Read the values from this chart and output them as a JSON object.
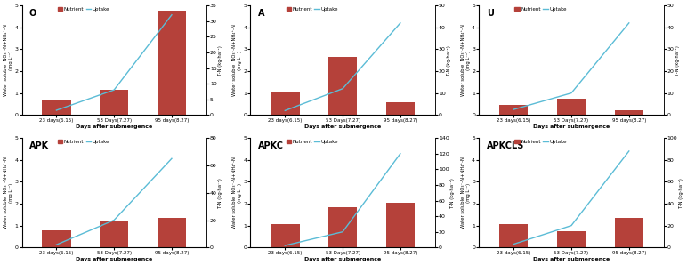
{
  "subplots": [
    {
      "label": "O",
      "bar_values": [
        0.65,
        1.15,
        4.75
      ],
      "line_values": [
        1.5,
        8.0,
        32.0
      ],
      "left_ylim": [
        0,
        5.0
      ],
      "right_ylim": [
        0,
        35
      ],
      "right_yticks": [
        0,
        5,
        10,
        15,
        20,
        25,
        30,
        35
      ]
    },
    {
      "label": "A",
      "bar_values": [
        1.05,
        2.65,
        0.6
      ],
      "line_values": [
        2.0,
        12.0,
        42.0
      ],
      "left_ylim": [
        0,
        5.0
      ],
      "right_ylim": [
        0,
        50
      ],
      "right_yticks": [
        0,
        10,
        20,
        30,
        40,
        50
      ]
    },
    {
      "label": "U",
      "bar_values": [
        0.45,
        0.75,
        0.2
      ],
      "line_values": [
        2.5,
        10.0,
        42.0
      ],
      "left_ylim": [
        0,
        5.0
      ],
      "right_ylim": [
        0,
        50
      ],
      "right_yticks": [
        0,
        10,
        20,
        30,
        40,
        50
      ]
    },
    {
      "label": "APK",
      "bar_values": [
        0.8,
        1.25,
        1.35
      ],
      "line_values": [
        2.0,
        20.0,
        65.0
      ],
      "left_ylim": [
        0,
        5.0
      ],
      "right_ylim": [
        0,
        80
      ],
      "right_yticks": [
        0,
        20,
        40,
        60,
        80
      ]
    },
    {
      "label": "APKC",
      "bar_values": [
        1.05,
        1.85,
        2.05
      ],
      "line_values": [
        2.5,
        20.0,
        120.0
      ],
      "left_ylim": [
        0,
        5.0
      ],
      "right_ylim": [
        0,
        140
      ],
      "right_yticks": [
        0,
        20,
        40,
        60,
        80,
        100,
        120,
        140
      ]
    },
    {
      "label": "APKCLS",
      "bar_values": [
        1.05,
        0.75,
        1.35
      ],
      "line_values": [
        3.0,
        20.0,
        88.0
      ],
      "left_ylim": [
        0,
        5.0
      ],
      "right_ylim": [
        0,
        100
      ],
      "right_yticks": [
        0,
        20,
        40,
        60,
        80,
        100
      ]
    }
  ],
  "x_labels": [
    "23 days(6.15)",
    "53 Days(7.27)",
    "95 days(8.27)"
  ],
  "x_label": "Days after submergence",
  "left_ylabel": "Water soluble  NO₃⁻-N+NH₄⁺-N\n(mg L⁻¹)",
  "right_ylabel": "T-N (kg·ha⁻¹)",
  "bar_color": "#b5413a",
  "line_color": "#5bbcd6",
  "left_yticks": [
    0.0,
    1.0,
    2.0,
    3.0,
    4.0,
    5.0
  ],
  "legend_nutrient": "Nutrient",
  "legend_uptake": "Uptake",
  "figsize": [
    7.72,
    2.98
  ],
  "dpi": 100
}
